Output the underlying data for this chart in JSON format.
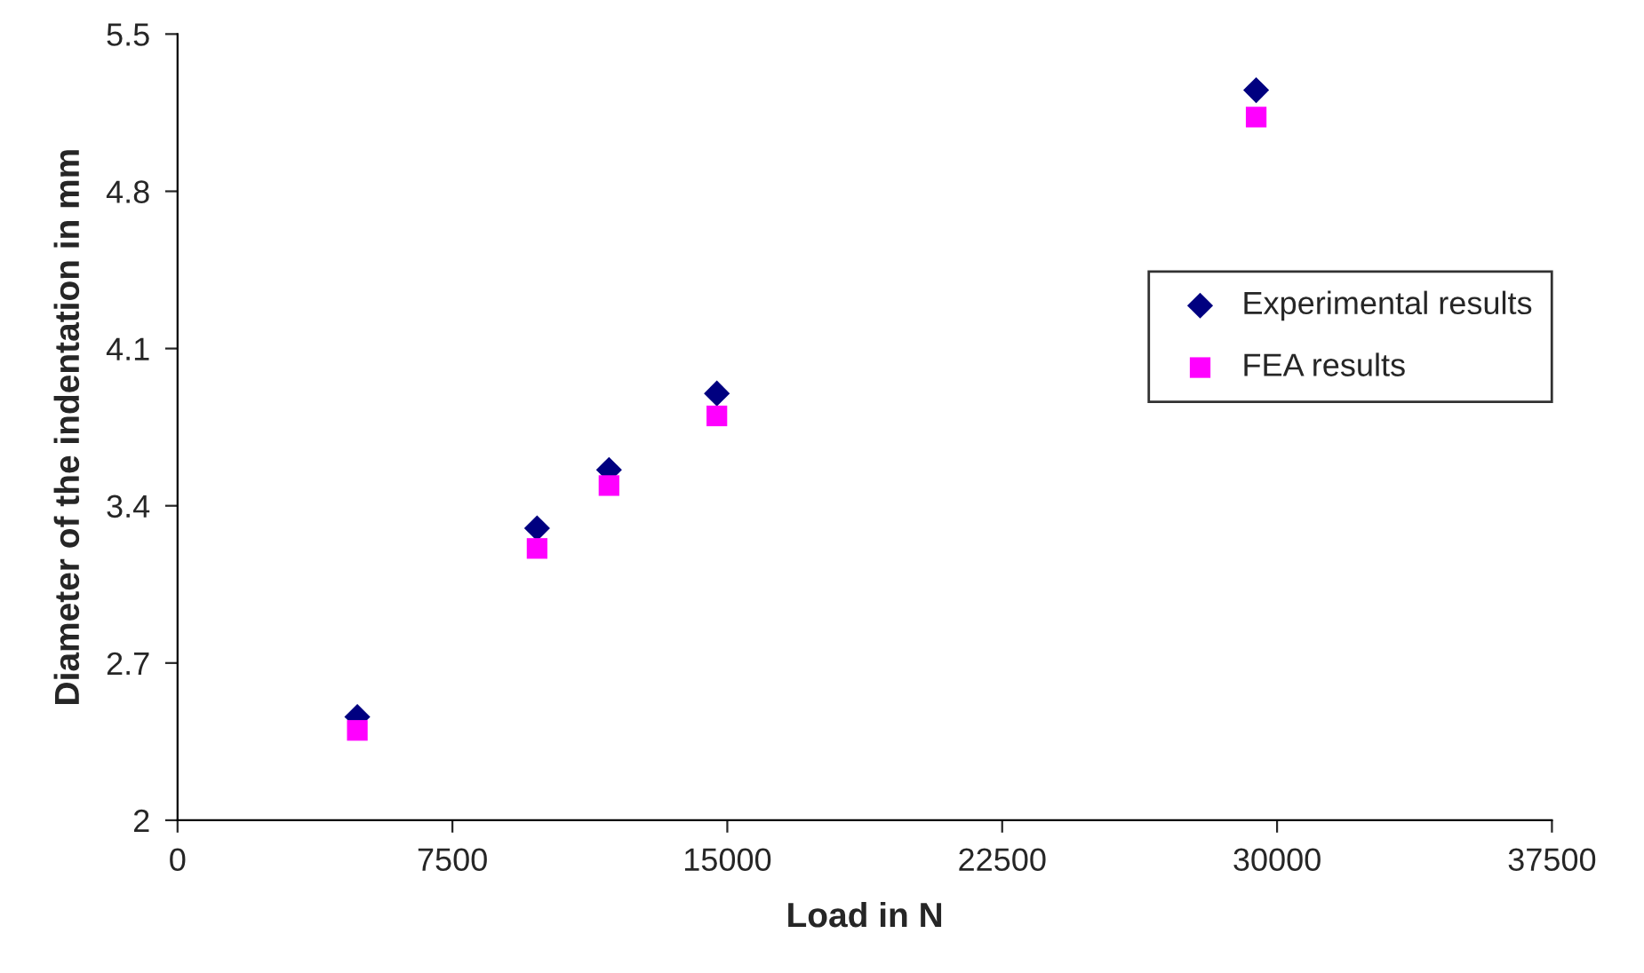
{
  "chart_data": {
    "type": "scatter",
    "xlabel": "Load in N",
    "ylabel": "Diameter of the indentation in mm",
    "xlim": [
      0,
      37500
    ],
    "xticks": [
      0,
      7500,
      15000,
      22500,
      30000,
      37500
    ],
    "ylim": [
      2,
      5.5
    ],
    "yticks": [
      2,
      2.7,
      3.4,
      4.1,
      4.8,
      5.5
    ],
    "grid": false,
    "legend": "right",
    "series": [
      {
        "name": "Experimental results",
        "color": "#000080",
        "marker": "diamond",
        "x": [
          4905,
          9810,
          11772,
          14715,
          29430
        ],
        "values": [
          2.46,
          3.3,
          3.56,
          3.9,
          5.25
        ]
      },
      {
        "name": "FEA results",
        "color": "#ff00ff",
        "marker": "square",
        "x": [
          4905,
          9810,
          11772,
          14715,
          29430
        ],
        "values": [
          2.4,
          3.21,
          3.49,
          3.8,
          5.13
        ]
      }
    ]
  }
}
